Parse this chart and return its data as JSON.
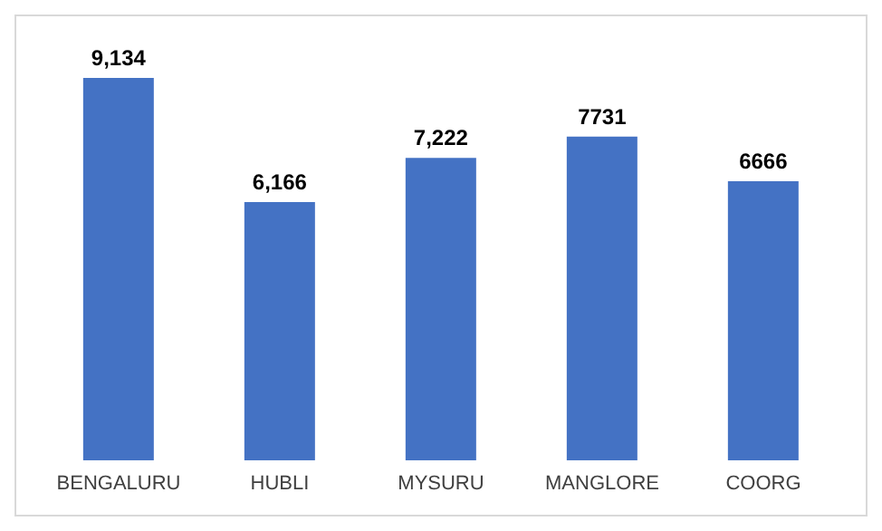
{
  "chart_data": {
    "type": "bar",
    "categories": [
      "BENGALURU",
      "HUBLI",
      "MYSURU",
      "MANGLORE",
      "COORG"
    ],
    "values": [
      9134,
      6166,
      7222,
      7731,
      6666
    ],
    "value_labels": [
      "9,134",
      "6,166",
      "7,222",
      "7731",
      "6666"
    ],
    "color": "#4472c4",
    "grid": false,
    "legend": false
  }
}
